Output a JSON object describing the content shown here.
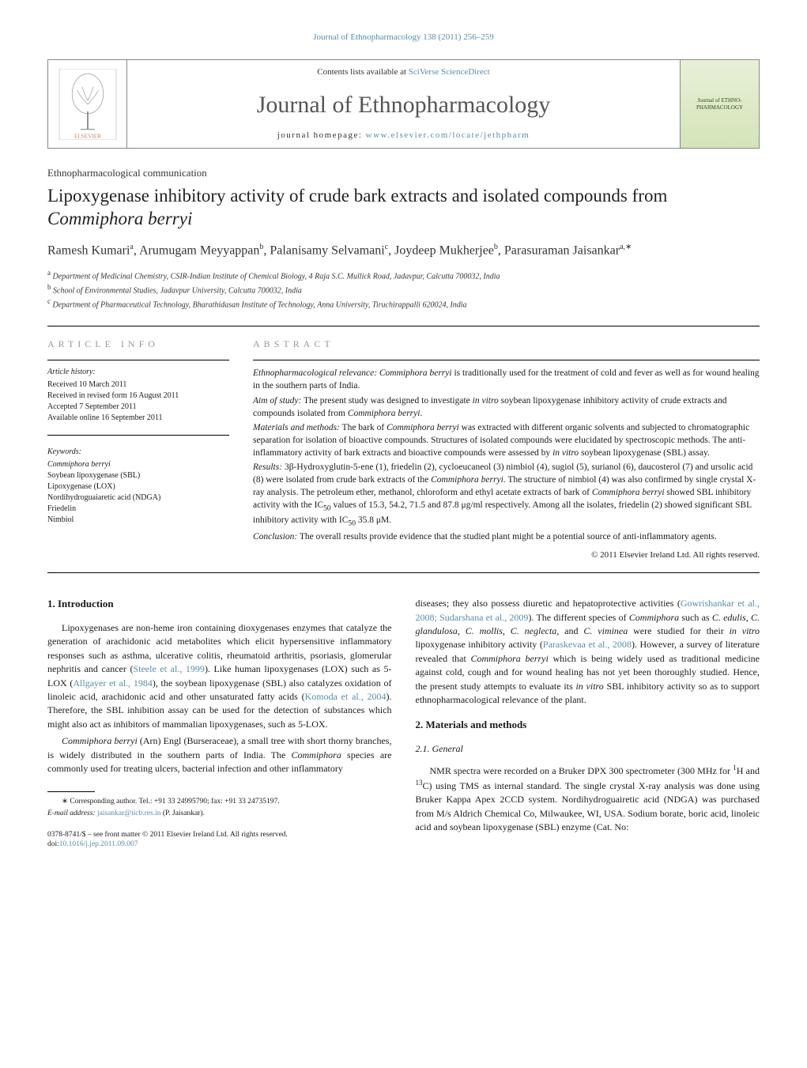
{
  "running_header": "Journal of Ethnopharmacology 138 (2011) 256–259",
  "masthead": {
    "contents_line_pre": "Contents lists available at ",
    "contents_link": "SciVerse ScienceDirect",
    "journal_name": "Journal of Ethnopharmacology",
    "homepage_pre": "journal homepage: ",
    "homepage_link": "www.elsevier.com/locate/jethpharm",
    "cover_text": "Journal of\nETHNO-\nPHARMACOLOGY"
  },
  "comm_type": "Ethnopharmacological communication",
  "title_parts": [
    "Lipoxygenase inhibitory activity of crude bark extracts and isolated compounds from ",
    "Commiphora berryi"
  ],
  "authors_html": "Ramesh Kumari<sup>a</sup>, Arumugam Meyyappan<sup>b</sup>, Palanisamy Selvamani<sup>c</sup>, Joydeep Mukherjee<sup>b</sup>, Parasuraman Jaisankar<sup>a,∗</sup>",
  "affiliations": [
    {
      "sup": "a",
      "text": "Department of Medicinal Chemistry, CSIR-Indian Institute of Chemical Biology, 4 Raja S.C. Mullick Road, Jadavpur, Calcutta 700032, India"
    },
    {
      "sup": "b",
      "text": "School of Environmental Studies, Jadavpur University, Calcutta 700032, India"
    },
    {
      "sup": "c",
      "text": "Department of Pharmaceutical Technology, Bharathidasan Institute of Technology, Anna University, Tiruchirappalli 620024, India"
    }
  ],
  "article_info": {
    "label": "ARTICLE INFO",
    "history_label": "Article history:",
    "history": [
      "Received 10 March 2011",
      "Received in revised form 16 August 2011",
      "Accepted 7 September 2011",
      "Available online 16 September 2011"
    ],
    "keywords_label": "Keywords:",
    "keywords": [
      "Commiphora berryi",
      "Soybean lipoxygenase (SBL)",
      "Lipoxygenase (LOX)",
      "Nordihydroguaiaretic acid (NDGA)",
      "Friedelin",
      "Nimbiol"
    ]
  },
  "abstract": {
    "label": "ABSTRACT",
    "paras": [
      "<em>Ethnopharmacological relevance: Commiphora berryi</em> is traditionally used for the treatment of cold and fever as well as for wound healing in the southern parts of India.",
      "<em>Aim of study:</em> The present study was designed to investigate <em>in vitro</em> soybean lipoxygenase inhibitory activity of crude extracts and compounds isolated from <em>Commiphora berryi</em>.",
      "<em>Materials and methods:</em> The bark of <em>Commiphora berryi</em> was extracted with different organic solvents and subjected to chromatographic separation for isolation of bioactive compounds. Structures of isolated compounds were elucidated by spectroscopic methods. The anti-inflammatory activity of bark extracts and bioactive compounds were assessed by <em>in vitro</em> soybean lipoxygenase (SBL) assay.",
      "<em>Results:</em> 3β-Hydroxyglutin-5-ene (1), friedelin (2), cycloeucaneol (3) nimbiol (4), sugiol (5), surianol (6), daucosterol (7) and ursolic acid (8) were isolated from crude bark extracts of the <em>Commiphora berryi</em>. The structure of nimbiol (4) was also confirmed by single crystal X-ray analysis. The petroleum ether, methanol, chloroform and ethyl acetate extracts of bark of <em>Commiphora berryi</em> showed SBL inhibitory activity with the IC<sub>50</sub> values of 15.3, 54.2, 71.5 and 87.8 μg/ml respectively. Among all the isolates, friedelin (2) showed significant SBL inhibitory activity with IC<sub>50</sub> 35.8 μM.",
      "<em>Conclusion:</em> The overall results provide evidence that the studied plant might be a potential source of anti-inflammatory agents."
    ],
    "copyright": "© 2011 Elsevier Ireland Ltd. All rights reserved."
  },
  "body": {
    "s1_heading": "1. Introduction",
    "s1_p1_parts": [
      "Lipoxygenases are non-heme iron containing dioxygenases enzymes that catalyze the generation of arachidonic acid metabolites which elicit hypersensitive inflammatory responses such as asthma, ulcerative colitis, rheumatoid arthritis, psoriasis, glomerular nephritis and cancer (",
      "Steele et al., 1999",
      "). Like human lipoxygenases (LOX) such as 5-LOX (",
      "Allgayer et al., 1984",
      "), the soybean lipoxygenase (SBL) also catalyzes oxidation of linoleic acid, arachidonic acid and other unsaturated fatty acids (",
      "Komoda et al., 2004",
      "). Therefore, the SBL inhibition assay can be used for the detection of substances which might also act as inhibitors of mammalian lipoxygenases, such as 5-LOX."
    ],
    "s1_p2": "<em>Commiphora berryi</em> (Arn) Engl (Burseraceae), a small tree with short thorny branches, is widely distributed in the southern parts of India. The <em>Commiphora</em> species are commonly used for treating ulcers, bacterial infection and other inflammatory",
    "col2_p1_parts": [
      "diseases; they also possess diuretic and hepatoprotective activities (",
      "Gowrishankar et al., 2008; Sudarshana et al., 2009",
      "). The different species of <em>Commiphora</em> such as <em>C. edulis, C. glandulosa, C. mollis, C. neglecta,</em> and <em>C. viminea</em> were studied for their <em>in vitro</em> lipoxygenase inhibitory activity (",
      "Paraskevaa et al., 2008",
      "). However, a survey of literature revealed that <em>Commiphora berryi</em> which is being widely used as traditional medicine against cold, cough and for wound healing has not yet been thoroughly studied. Hence, the present study attempts to evaluate its <em>in vitro</em> SBL inhibitory activity so as to support ethnopharmacological relevance of the plant."
    ],
    "s2_heading": "2. Materials and methods",
    "s2_1_heading": "2.1. General",
    "s2_1_p1": "NMR spectra were recorded on a Bruker DPX 300 spectrometer (300 MHz for <sup>1</sup>H and <sup>13</sup>C) using TMS as internal standard. The single crystal X-ray analysis was done using Bruker Kappa Apex 2CCD system. Nordihydroguairetic acid (NDGA) was purchased from M/s Aldrich Chemical Co, Milwaukee, WI, USA. Sodium borate, boric acid, linoleic acid and soybean lipoxygenase (SBL) enzyme (Cat. No:"
  },
  "footnote": {
    "corr": "∗ Corresponding author. Tel.: +91 33 24995790; fax: +91 33 24735197.",
    "email_label": "E-mail address: ",
    "email": "jaisankar@iicb.res.in",
    "email_owner": " (P. Jaisankar)."
  },
  "footer": {
    "line1": "0378-8741/$ – see front matter © 2011 Elsevier Ireland Ltd. All rights reserved.",
    "doi_pre": "doi:",
    "doi": "10.1016/j.jep.2011.09.007"
  },
  "colors": {
    "link": "#5a8ca8",
    "text": "#1a1a1a",
    "label_grey": "#999999"
  }
}
